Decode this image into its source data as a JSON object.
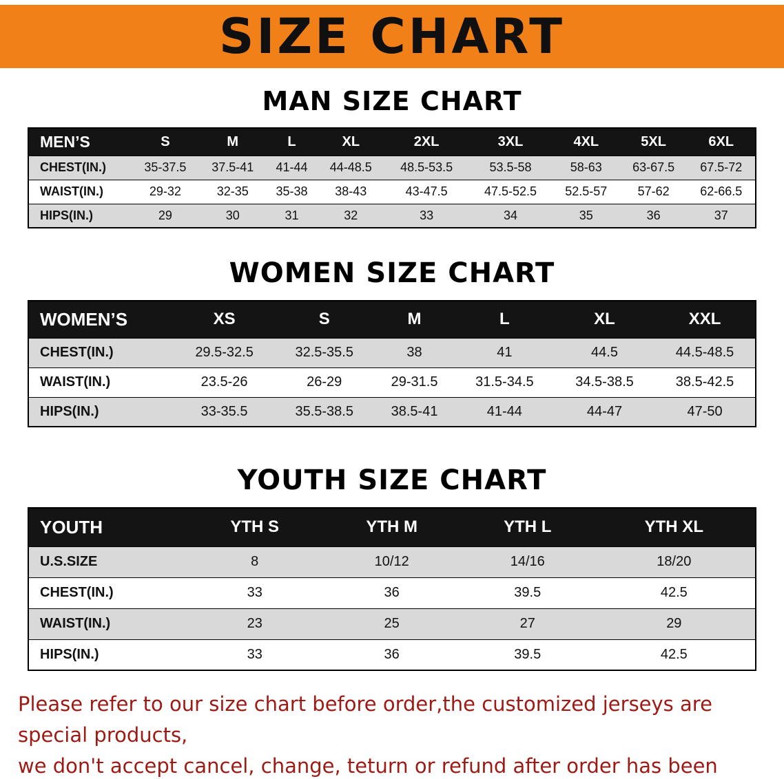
{
  "banner": {
    "title": "SIZE CHART"
  },
  "colors": {
    "banner_bg": "#f28018",
    "table_header_bg": "#141414",
    "row_stripe_gray": "#d9d9d9",
    "note_text": "#9e1a15",
    "title_text": "#101010"
  },
  "sections": [
    {
      "id": "men",
      "heading": "MAN SIZE CHART",
      "table": {
        "header": [
          "MEN’S",
          "S",
          "M",
          "L",
          "XL",
          "2XL",
          "3XL",
          "4XL",
          "5XL",
          "6XL"
        ],
        "rows": [
          [
            "CHEST(IN.)",
            "35-37.5",
            "37.5-41",
            "41-44",
            "44-48.5",
            "48.5-53.5",
            "53.5-58",
            "58-63",
            "63-67.5",
            "67.5-72"
          ],
          [
            "WAIST(IN.)",
            "29-32",
            "32-35",
            "35-38",
            "38-43",
            "43-47.5",
            "47.5-52.5",
            "52.5-57",
            "57-62",
            "62-66.5"
          ],
          [
            "HIPS(IN.)",
            "29",
            "30",
            "31",
            "32",
            "33",
            "34",
            "35",
            "36",
            "37"
          ]
        ]
      }
    },
    {
      "id": "women",
      "heading": "WOMEN SIZE CHART",
      "table": {
        "header": [
          "WOMEN’S",
          "XS",
          "S",
          "M",
          "L",
          "XL",
          "XXL"
        ],
        "rows": [
          [
            "CHEST(IN.)",
            "29.5-32.5",
            "32.5-35.5",
            "38",
            "41",
            "44.5",
            "44.5-48.5"
          ],
          [
            "WAIST(IN.)",
            "23.5-26",
            "26-29",
            "29-31.5",
            "31.5-34.5",
            "34.5-38.5",
            "38.5-42.5"
          ],
          [
            "HIPS(IN.)",
            "33-35.5",
            "35.5-38.5",
            "38.5-41",
            "41-44",
            "44-47",
            "47-50"
          ]
        ]
      }
    },
    {
      "id": "youth",
      "heading": "YOUTH SIZE CHART",
      "table": {
        "header": [
          "YOUTH",
          "YTH S",
          "YTH M",
          "YTH L",
          "YTH XL"
        ],
        "rows": [
          [
            "U.S.SIZE",
            "8",
            "10/12",
            "14/16",
            "18/20"
          ],
          [
            "CHEST(IN.)",
            "33",
            "36",
            "39.5",
            "42.5"
          ],
          [
            "WAIST(IN.)",
            "23",
            "25",
            "27",
            "29"
          ],
          [
            "HIPS(IN.)",
            "33",
            "36",
            "39.5",
            "42.5"
          ]
        ]
      }
    }
  ],
  "note": {
    "line1": "Please refer to our size chart before order,the customized jerseys are special products,",
    "line2": "we don't accept cancel, change, teturn or refund after order has been placed!"
  }
}
